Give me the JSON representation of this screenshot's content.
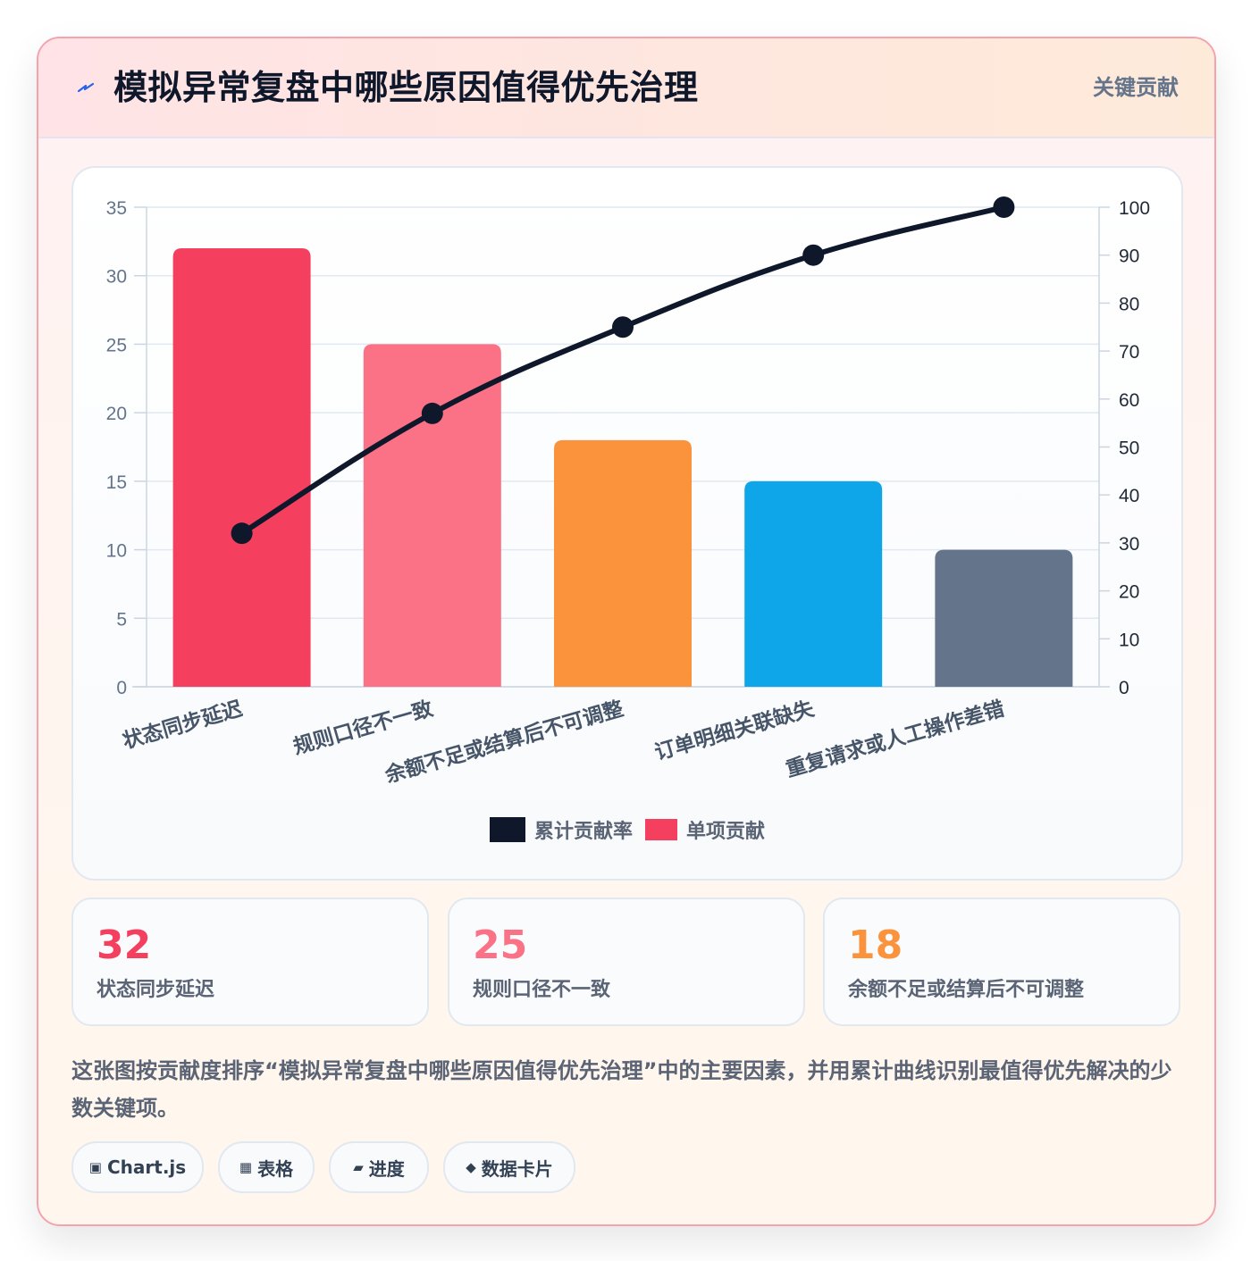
{
  "header": {
    "title": "模拟异常复盘中哪些原因值得优先治理",
    "badge": "关键贡献"
  },
  "chart_data": {
    "type": "bar",
    "categories": [
      "状态同步延迟",
      "规则口径不一致",
      "余额不足或结算后不可调整",
      "订单明细关联缺失",
      "重复请求或人工操作差错"
    ],
    "series": [
      {
        "name": "单项贡献",
        "type": "bar",
        "axis": "left",
        "values": [
          32,
          25,
          18,
          15,
          10
        ]
      },
      {
        "name": "累计贡献率",
        "type": "line",
        "axis": "right",
        "values": [
          32,
          57,
          75,
          90,
          100
        ]
      }
    ],
    "bar_colors": [
      "#f43f5e",
      "#fb7185",
      "#fb923c",
      "#0ea5e9",
      "#64748b"
    ],
    "line_color": "#0f172a",
    "ylim": [
      0,
      35
    ],
    "yticks": [
      0,
      5,
      10,
      15,
      20,
      25,
      30,
      35
    ],
    "y2lim": [
      0,
      100
    ],
    "y2ticks": [
      0,
      10,
      20,
      30,
      40,
      50,
      60,
      70,
      80,
      90,
      100
    ],
    "grid": true,
    "legend_position": "bottom"
  },
  "legend": {
    "items": [
      {
        "label": "累计贡献率",
        "color": "#0f172a"
      },
      {
        "label": "单项贡献",
        "color": "#f43f5e"
      }
    ]
  },
  "stats": [
    {
      "value": "32",
      "label": "状态同步延迟",
      "color": "#f43f5e"
    },
    {
      "value": "25",
      "label": "规则口径不一致",
      "color": "#fb7185"
    },
    {
      "value": "18",
      "label": "余额不足或结算后不可调整",
      "color": "#fb923c"
    }
  ],
  "description": "这张图按贡献度排序“模拟异常复盘中哪些原因值得优先治理”中的主要因素，并用累计曲线识别最值得优先解决的少数关键项。",
  "tags": [
    {
      "icon": "▣",
      "icon_name": "chart-icon",
      "label": "Chart.js"
    },
    {
      "icon": "▦",
      "icon_name": "table-icon",
      "label": "表格"
    },
    {
      "icon": "▰",
      "icon_name": "progress-icon",
      "label": "进度"
    },
    {
      "icon": "◆",
      "icon_name": "data-card-icon",
      "label": "数据卡片"
    }
  ]
}
